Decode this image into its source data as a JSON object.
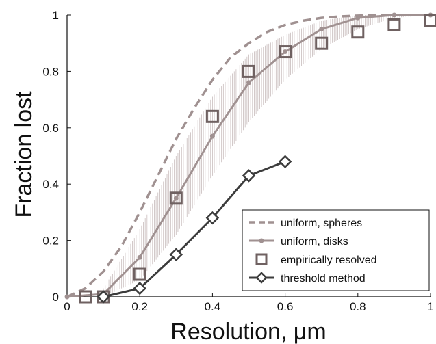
{
  "chart_data": {
    "type": "line",
    "xlabel": "Resolution, μm",
    "ylabel": "Fraction lost",
    "xlim": [
      0,
      1
    ],
    "ylim": [
      0,
      1
    ],
    "xticks": [
      0,
      0.2,
      0.4,
      0.6,
      0.8,
      1
    ],
    "xtick_labels": [
      "0",
      "0.2",
      "0.4",
      "0.6",
      "0.8",
      "1"
    ],
    "yticks": [
      0,
      0.2,
      0.4,
      0.6,
      0.8,
      1
    ],
    "ytick_labels": [
      "0",
      "0.2",
      "0.4",
      "0.6",
      "0.8",
      "1"
    ],
    "grid": false,
    "legend_position": "bottom-right",
    "series": [
      {
        "name": "uniform, spheres",
        "style": "dashed",
        "color": "#a09191",
        "x": [
          0,
          0.05,
          0.1,
          0.15,
          0.2,
          0.25,
          0.3,
          0.35,
          0.4,
          0.45,
          0.5,
          0.55,
          0.6,
          0.65,
          0.7,
          0.75,
          0.8,
          0.85,
          0.9,
          0.95,
          1.0
        ],
        "y": [
          0,
          0.03,
          0.09,
          0.18,
          0.3,
          0.43,
          0.56,
          0.67,
          0.77,
          0.85,
          0.9,
          0.94,
          0.965,
          0.98,
          0.99,
          0.995,
          0.998,
          1,
          1,
          1,
          1
        ]
      },
      {
        "name": "uniform, disks",
        "style": "solid-dot",
        "color": "#a09191",
        "x": [
          0,
          0.1,
          0.2,
          0.3,
          0.4,
          0.5,
          0.6,
          0.7,
          0.8,
          0.9,
          1.0
        ],
        "y": [
          0,
          0.01,
          0.14,
          0.35,
          0.57,
          0.76,
          0.87,
          0.95,
          0.99,
          1,
          1
        ],
        "band_upper": [
          0,
          0.03,
          0.24,
          0.5,
          0.71,
          0.86,
          0.93,
          0.98,
          1,
          1,
          1
        ],
        "band_lower": [
          0,
          0.0,
          0.06,
          0.22,
          0.43,
          0.62,
          0.77,
          0.88,
          0.95,
          0.99,
          1
        ]
      },
      {
        "name": "empirically resolved",
        "style": "square-markers",
        "color": "#6f6161",
        "x": [
          0.05,
          0.1,
          0.2,
          0.3,
          0.4,
          0.5,
          0.6,
          0.7,
          0.8,
          0.9,
          1.0
        ],
        "y": [
          0,
          0,
          0.08,
          0.35,
          0.64,
          0.8,
          0.87,
          0.9,
          0.94,
          0.965,
          0.98
        ]
      },
      {
        "name": "threshold method",
        "style": "solid-diamond",
        "color": "#3c3c3c",
        "x": [
          0.1,
          0.2,
          0.3,
          0.4,
          0.5,
          0.6
        ],
        "y": [
          0,
          0.03,
          0.15,
          0.28,
          0.43,
          0.48
        ]
      }
    ]
  }
}
